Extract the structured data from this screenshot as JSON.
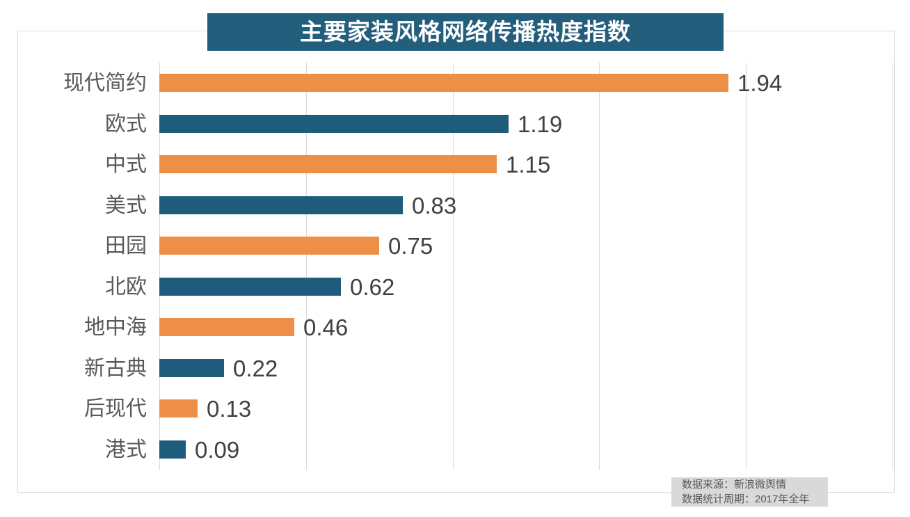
{
  "title": {
    "text": "主要家装风格网络传播热度指数"
  },
  "footer": {
    "source": "数据来源：新浪微舆情",
    "period": "数据统计周期：2017年全年"
  },
  "colors": {
    "orange": "#EE8F47",
    "blue": "#1F5C7B",
    "title_bg": "#235E7D",
    "title_text": "#FFFFFF",
    "grid": "#D9D9D9",
    "frame": "#D9D9D9",
    "footer_bg": "#D9D9D9",
    "category_label": "#595959",
    "value_label": "#404040",
    "footer_text": "#595959"
  },
  "chart_data": {
    "type": "bar",
    "orientation": "horizontal",
    "title": "主要家装风格网络传播热度指数",
    "categories": [
      "现代简约",
      "欧式",
      "中式",
      "美式",
      "田园",
      "北欧",
      "地中海",
      "新古典",
      "后现代",
      "港式"
    ],
    "values": [
      1.94,
      1.19,
      1.15,
      0.83,
      0.75,
      0.62,
      0.46,
      0.22,
      0.13,
      0.09
    ],
    "value_labels": [
      "1.94",
      "1.19",
      "1.15",
      "0.83",
      "0.75",
      "0.62",
      "0.46",
      "0.22",
      "0.13",
      "0.09"
    ],
    "bar_colors": [
      "#EE8F47",
      "#1F5C7B",
      "#EE8F47",
      "#1F5C7B",
      "#EE8F47",
      "#1F5C7B",
      "#EE8F47",
      "#1F5C7B",
      "#EE8F47",
      "#1F5C7B"
    ],
    "xlim": [
      0,
      2.5
    ],
    "grid": true,
    "gridline_values": [
      0,
      0.5,
      1.0,
      1.5,
      2.0,
      2.5
    ],
    "legend": "none",
    "source_note": "数据来源：新浪微舆情",
    "period_note": "数据统计周期：2017年全年"
  }
}
